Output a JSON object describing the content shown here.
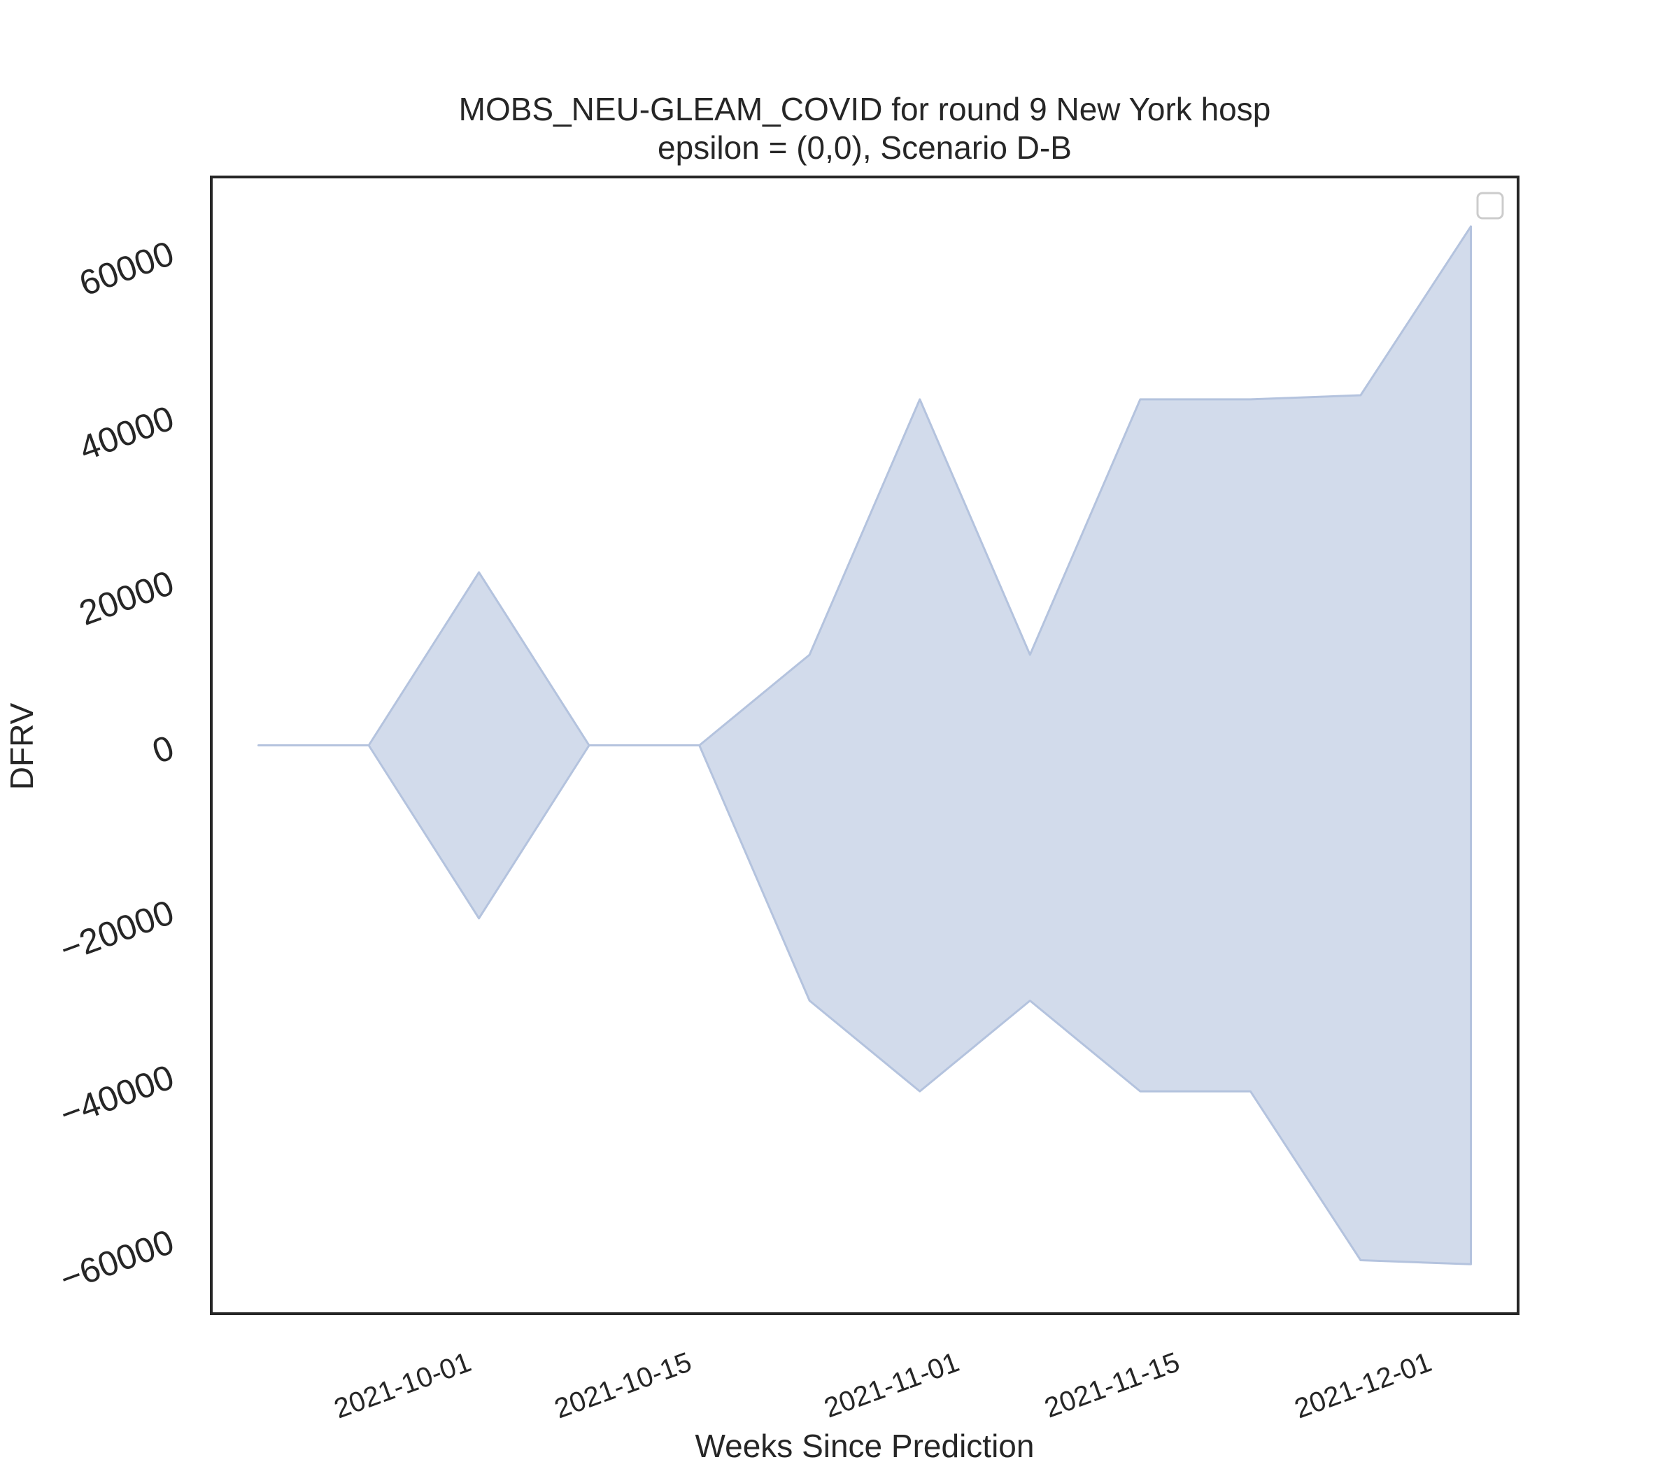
{
  "chart_data": {
    "type": "area",
    "title": "MOBS_NEU-GLEAM_COVID for round 9 New York hosp",
    "subtitle": "epsilon = (0,0), Scenario D-B",
    "xlabel": "Weeks Since Prediction",
    "ylabel": "DFRV",
    "x": [
      "2021-09-18",
      "2021-09-25",
      "2021-10-02",
      "2021-10-09",
      "2021-10-16",
      "2021-10-23",
      "2021-10-30",
      "2021-11-06",
      "2021-11-13",
      "2021-11-20",
      "2021-11-27",
      "2021-12-04"
    ],
    "series": [
      {
        "upper": [
          0,
          0,
          21000,
          0,
          0,
          11000,
          42000,
          11000,
          42000,
          42000,
          42500,
          63000
        ],
        "lower": [
          0,
          0,
          -21000,
          0,
          0,
          -31000,
          -42000,
          -31000,
          -42000,
          -42000,
          -62500,
          -63000
        ]
      }
    ],
    "xticks": [
      "2021-10-01",
      "2021-10-15",
      "2021-11-01",
      "2021-11-15",
      "2021-12-01"
    ],
    "yticks": [
      60000,
      40000,
      20000,
      0,
      -20000,
      -40000,
      -60000
    ],
    "ytick_labels": [
      "60000",
      "40000",
      "20000",
      "0",
      "−20000",
      "−40000",
      "−60000"
    ],
    "ylim": [
      -69000,
      69000
    ],
    "xlim": [
      "2021-09-15",
      "2021-12-07"
    ],
    "grid": false,
    "legend": "top-right (empty)",
    "colors": {
      "fill": "#d2dbeb",
      "edge": "#b4c3de",
      "frame": "#262626"
    }
  }
}
